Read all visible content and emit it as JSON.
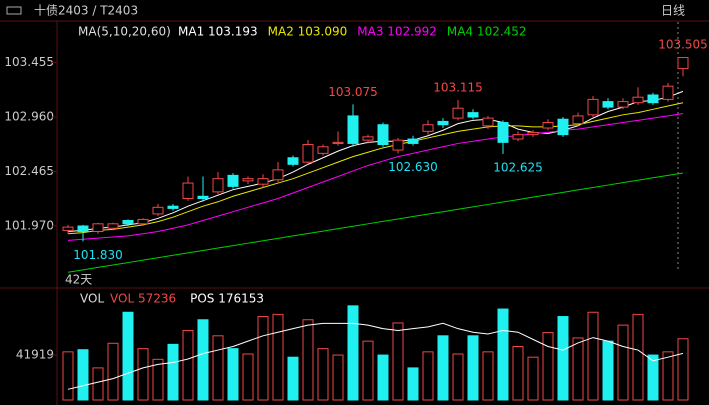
{
  "header": {
    "title": "十债2403 / T2403",
    "period": "日线"
  },
  "chart_data": [
    {
      "type": "candlestick",
      "ma_label": "MA(5,10,20,60)",
      "period_label": "42天",
      "up_color": "#f04848",
      "down_color": "#20f0f0",
      "open": [
        101.93,
        101.97,
        101.92,
        101.95,
        102.02,
        101.99,
        102.08,
        102.15,
        102.22,
        102.24,
        102.28,
        102.43,
        102.38,
        102.35,
        102.39,
        102.59,
        102.55,
        102.63,
        102.72,
        102.97,
        102.75,
        102.89,
        102.66,
        102.76,
        102.83,
        102.92,
        102.95,
        103.0,
        102.88,
        102.91,
        102.76,
        102.8,
        102.86,
        102.94,
        102.9,
        102.98,
        103.1,
        103.05,
        103.09,
        103.16,
        103.12,
        103.4
      ],
      "high": [
        101.98,
        101.98,
        102.0,
        102.0,
        102.03,
        102.04,
        102.17,
        102.17,
        102.42,
        102.42,
        102.46,
        102.45,
        102.42,
        102.44,
        102.55,
        102.61,
        102.75,
        102.71,
        102.83,
        103.075,
        102.8,
        102.91,
        102.77,
        102.79,
        102.93,
        102.95,
        103.115,
        103.03,
        102.97,
        102.93,
        102.83,
        102.84,
        102.94,
        102.96,
        103.0,
        103.15,
        103.13,
        103.13,
        103.23,
        103.18,
        103.27,
        103.505
      ],
      "low": [
        101.9,
        101.83,
        101.9,
        101.93,
        101.97,
        101.97,
        102.06,
        102.11,
        102.2,
        102.19,
        102.26,
        102.31,
        102.35,
        102.32,
        102.37,
        102.51,
        102.53,
        102.61,
        102.7,
        102.69,
        102.72,
        102.69,
        102.63,
        102.7,
        102.8,
        102.86,
        102.93,
        102.94,
        102.85,
        102.625,
        102.74,
        102.78,
        102.84,
        102.78,
        102.88,
        102.96,
        103.03,
        103.03,
        103.07,
        103.07,
        103.1,
        103.33
      ],
      "close": [
        101.96,
        101.92,
        101.99,
        101.99,
        101.99,
        102.03,
        102.14,
        102.13,
        102.36,
        102.22,
        102.4,
        102.33,
        102.4,
        102.4,
        102.48,
        102.53,
        102.71,
        102.69,
        102.73,
        102.72,
        102.78,
        102.71,
        102.75,
        102.72,
        102.89,
        102.89,
        103.04,
        102.96,
        102.95,
        102.73,
        102.8,
        102.82,
        102.91,
        102.8,
        102.97,
        103.12,
        103.05,
        103.1,
        103.14,
        103.09,
        103.24,
        103.5
      ],
      "series": [
        {
          "name": "MA1",
          "color": "#ffffff",
          "legend_value": 103.193,
          "values": [
            101.92,
            101.93,
            101.95,
            101.96,
            101.98,
            102.0,
            102.04,
            102.09,
            102.15,
            102.2,
            102.25,
            102.3,
            102.33,
            102.36,
            102.4,
            102.46,
            102.53,
            102.59,
            102.65,
            102.7,
            102.73,
            102.74,
            102.74,
            102.75,
            102.79,
            102.84,
            102.9,
            102.93,
            102.94,
            102.91,
            102.85,
            102.82,
            102.81,
            102.84,
            102.88,
            102.95,
            103.01,
            103.05,
            103.1,
            103.11,
            103.14,
            103.193
          ]
        },
        {
          "name": "MA2",
          "color": "#e8e800",
          "legend_value": {
            "value": 103.09,
            "label": "103.090"
          },
          "values": [
            101.9,
            101.91,
            101.93,
            101.94,
            101.96,
            101.98,
            102.01,
            102.05,
            102.1,
            102.15,
            102.19,
            102.24,
            102.28,
            102.32,
            102.36,
            102.4,
            102.45,
            102.5,
            102.55,
            102.6,
            102.64,
            102.68,
            102.71,
            102.74,
            102.77,
            102.8,
            102.83,
            102.85,
            102.87,
            102.88,
            102.88,
            102.87,
            102.87,
            102.88,
            102.89,
            102.92,
            102.95,
            102.98,
            103.0,
            103.03,
            103.06,
            103.09
          ]
        },
        {
          "name": "MA3",
          "color": "#ff00ff",
          "legend_value": 102.992,
          "values": [
            101.84,
            101.85,
            101.86,
            101.87,
            101.88,
            101.9,
            101.92,
            101.95,
            101.98,
            102.02,
            102.06,
            102.1,
            102.14,
            102.18,
            102.22,
            102.27,
            102.32,
            102.37,
            102.42,
            102.47,
            102.52,
            102.56,
            102.6,
            102.63,
            102.66,
            102.69,
            102.72,
            102.74,
            102.76,
            102.78,
            102.79,
            102.81,
            102.82,
            102.84,
            102.85,
            102.87,
            102.89,
            102.91,
            102.93,
            102.95,
            102.97,
            102.992
          ]
        },
        {
          "name": "MA4",
          "color": "#00d000",
          "legend_value": 102.452,
          "values": [
            101.55,
            101.572,
            101.594,
            101.616,
            101.638,
            101.66,
            101.682,
            101.704,
            101.726,
            101.748,
            101.77,
            101.792,
            101.814,
            101.836,
            101.858,
            101.88,
            101.902,
            101.924,
            101.946,
            101.968,
            101.99,
            102.012,
            102.034,
            102.056,
            102.078,
            102.1,
            102.122,
            102.144,
            102.166,
            102.188,
            102.21,
            102.232,
            102.254,
            102.276,
            102.298,
            102.32,
            102.342,
            102.364,
            102.386,
            102.408,
            102.43,
            102.452
          ]
        }
      ],
      "annotations": [
        {
          "index": 41,
          "value": 103.505,
          "color": "#f04848"
        },
        {
          "index": 19,
          "value": 103.075,
          "color": "#f04848"
        },
        {
          "index": 26,
          "value": 103.115,
          "color": "#f04848"
        },
        {
          "index": 23,
          "value": {
            "value": 102.63,
            "label": "102.630"
          },
          "color": "#20e0f0"
        },
        {
          "index": 30,
          "value": 102.625,
          "color": "#20e0f0"
        },
        {
          "index": 2,
          "value": {
            "value": 101.83,
            "label": "101.830"
          },
          "color": "#20e0f0"
        }
      ],
      "ylim": [
        101.407,
        103.823
      ],
      "yticks": [
        {
          "value": 101.97,
          "label": "101.970"
        },
        102.465,
        {
          "value": 102.96,
          "label": "102.960"
        },
        103.455
      ]
    },
    {
      "type": "volume",
      "title": "VOL",
      "series": [
        {
          "name": "VOL",
          "color": "#f04848",
          "legend_value": 57236,
          "values": [
            45000,
            47000,
            30000,
            53000,
            82000,
            48000,
            38000,
            52000,
            65000,
            75000,
            60000,
            48000,
            43000,
            78000,
            80000,
            40000,
            75000,
            48000,
            42000,
            88000,
            55000,
            42000,
            72000,
            30000,
            45000,
            60000,
            43000,
            60000,
            45000,
            85000,
            50000,
            40000,
            63000,
            78000,
            58000,
            82000,
            55000,
            70000,
            80000,
            42000,
            45000,
            57236
          ]
        },
        {
          "name": "POS",
          "color": "#ffffff",
          "axis": "y2",
          "legend_value": 176153,
          "values": [
            156000,
            158000,
            160000,
            162000,
            165000,
            168000,
            170000,
            171000,
            173000,
            176000,
            178000,
            180000,
            183000,
            186000,
            188000,
            190000,
            192000,
            193000,
            193000,
            193000,
            192000,
            190000,
            189000,
            190000,
            191000,
            193000,
            190000,
            188000,
            187000,
            189000,
            188000,
            184000,
            180000,
            178000,
            182000,
            185000,
            183000,
            180000,
            178000,
            172000,
            174000,
            176153
          ]
        }
      ],
      "ylim": [
        0,
        100000
      ],
      "yticks": [
        41919
      ],
      "y2lim": [
        150000,
        210000
      ]
    }
  ]
}
